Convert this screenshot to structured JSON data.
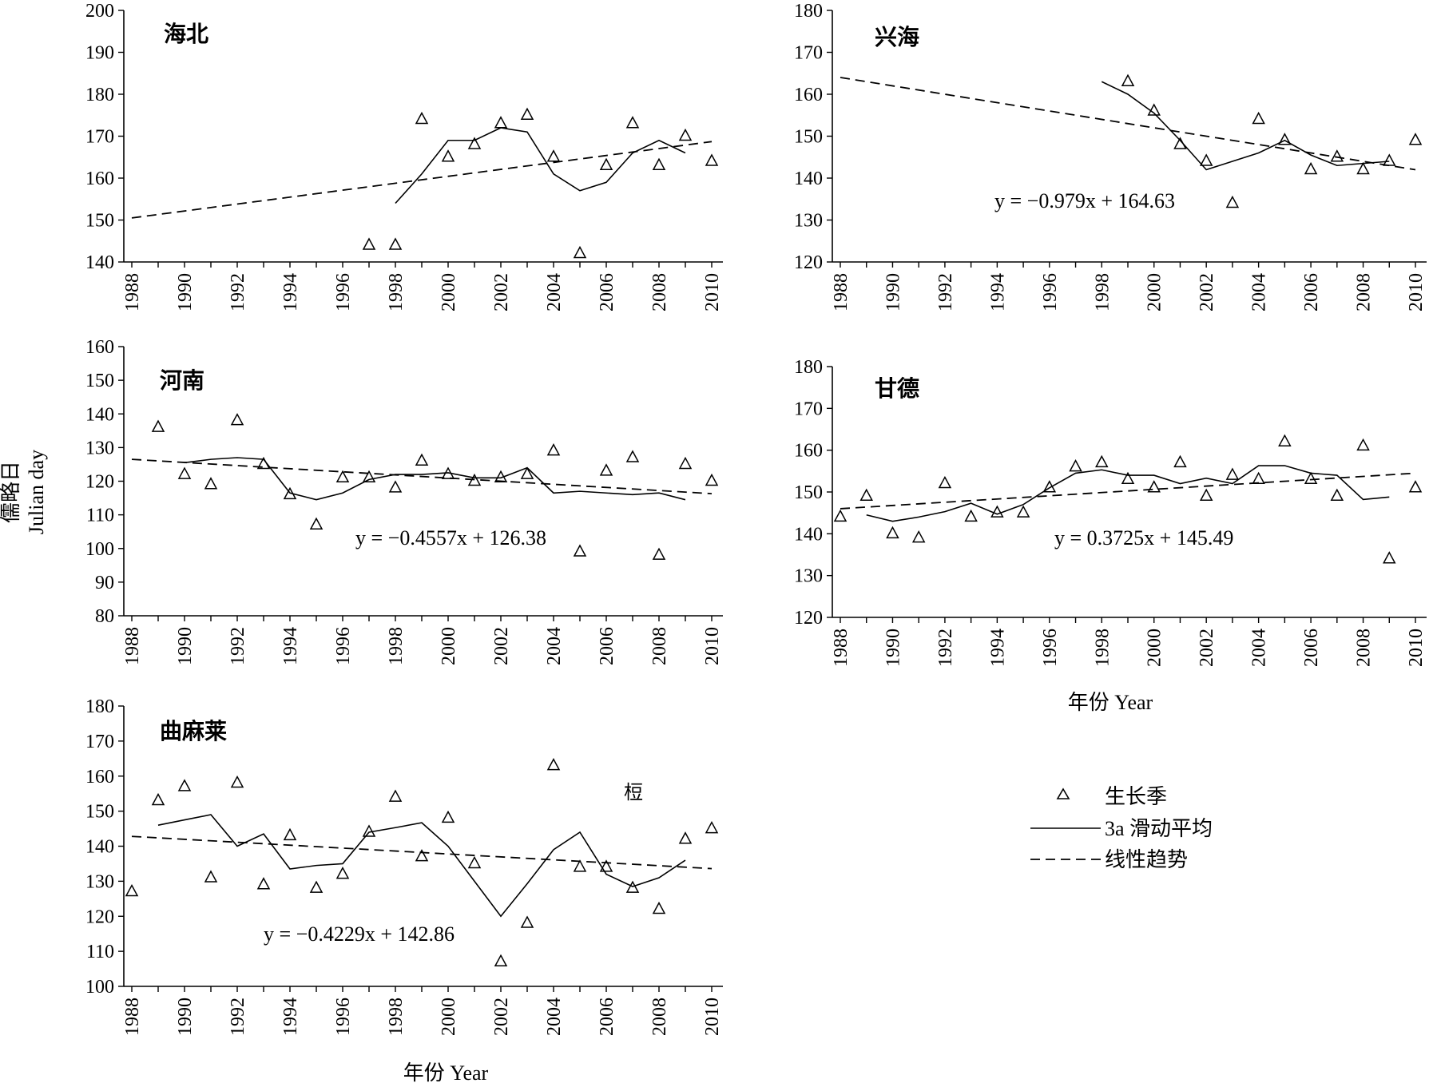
{
  "figure": {
    "ylabel_cn": "儒略日",
    "ylabel_en": "Julian day",
    "xlabel_right": "年份 Year",
    "xlabel_bottom": "年份 Year",
    "stray_mark": "梪"
  },
  "legend": {
    "entries": [
      {
        "label": "生长季",
        "kind": "triangle"
      },
      {
        "label": "3a 滑动平均",
        "kind": "solid"
      },
      {
        "label": "线性趋势",
        "kind": "dashed"
      }
    ]
  },
  "chart_data": [
    {
      "type": "scatter",
      "title": "海北",
      "equation": "",
      "ylim": [
        140,
        200
      ],
      "yticks": [
        140,
        150,
        160,
        170,
        180,
        190,
        200
      ],
      "xlim": [
        1988,
        2010
      ],
      "xticks": [
        1988,
        1990,
        1992,
        1994,
        1996,
        1998,
        2000,
        2002,
        2004,
        2006,
        2008,
        2010
      ],
      "series": [
        {
          "kind": "triangle",
          "x": [
            1997,
            1998,
            1999,
            2000,
            2001,
            2002,
            2003,
            2004,
            2005,
            2006,
            2007,
            2008,
            2009,
            2010
          ],
          "values": [
            144,
            144,
            174,
            165,
            168,
            173,
            175,
            165,
            142,
            163,
            173,
            163,
            170,
            164
          ]
        },
        {
          "kind": "solid",
          "x": [
            1998,
            1999,
            2000,
            2001,
            2002,
            2003,
            2004,
            2005,
            2006,
            2007,
            2008,
            2009
          ],
          "values": [
            154,
            161,
            169,
            169,
            172,
            171,
            161,
            157,
            159,
            166,
            169,
            166
          ]
        },
        {
          "kind": "dashed",
          "x": [
            1988,
            2010
          ],
          "values": [
            150.5,
            168.7
          ]
        }
      ]
    },
    {
      "type": "scatter",
      "title": "兴海",
      "equation": "y = −0.979x + 164.63",
      "ylim": [
        120,
        180
      ],
      "yticks": [
        120,
        130,
        140,
        150,
        160,
        170,
        180
      ],
      "xlim": [
        1988,
        2010
      ],
      "xticks": [
        1988,
        1990,
        1992,
        1994,
        1996,
        1998,
        2000,
        2002,
        2004,
        2006,
        2008,
        2010
      ],
      "series": [
        {
          "kind": "triangle",
          "x": [
            1999,
            2000,
            2001,
            2002,
            2003,
            2004,
            2005,
            2006,
            2007,
            2008,
            2009,
            2010
          ],
          "values": [
            163,
            156,
            148,
            144,
            134,
            154,
            149,
            142,
            145,
            142,
            144,
            149
          ]
        },
        {
          "kind": "solid",
          "x": [
            1998,
            1999,
            2000,
            2001,
            2002,
            2003,
            2004,
            2005,
            2006,
            2007,
            2008,
            2009
          ],
          "values": [
            163,
            160,
            155.5,
            149,
            142,
            144,
            146,
            149,
            145.5,
            143,
            143.5,
            144
          ]
        },
        {
          "kind": "dashed",
          "x": [
            1988,
            2010
          ],
          "values": [
            164,
            142
          ]
        }
      ]
    },
    {
      "type": "scatter",
      "title": "河南",
      "equation": "y = −0.4557x + 126.38",
      "ylim": [
        80,
        160
      ],
      "yticks": [
        80,
        90,
        100,
        110,
        120,
        130,
        140,
        150,
        160
      ],
      "xlim": [
        1988,
        2010
      ],
      "xticks": [
        1988,
        1990,
        1992,
        1994,
        1996,
        1998,
        2000,
        2002,
        2004,
        2006,
        2008,
        2010
      ],
      "series": [
        {
          "kind": "triangle",
          "x": [
            1989,
            1990,
            1991,
            1992,
            1993,
            1994,
            1995,
            1996,
            1997,
            1998,
            1999,
            2000,
            2001,
            2002,
            2003,
            2004,
            2005,
            2006,
            2007,
            2008,
            2009,
            2010
          ],
          "values": [
            136,
            122,
            119,
            138,
            125,
            116,
            107,
            121,
            121,
            118,
            126,
            122,
            120,
            121,
            122,
            129,
            99,
            123,
            127,
            98,
            125,
            120
          ]
        },
        {
          "kind": "solid",
          "x": [
            1990,
            1991,
            1992,
            1993,
            1994,
            1995,
            1996,
            1997,
            1998,
            1999,
            2000,
            2001,
            2002,
            2003,
            2004,
            2005,
            2006,
            2007,
            2008,
            2009
          ],
          "values": [
            125.5,
            126.5,
            127,
            126.5,
            116.5,
            114.5,
            116.5,
            120.5,
            122,
            122,
            122.5,
            121,
            121,
            124,
            116.5,
            117,
            116.5,
            116,
            116.5,
            114.5
          ]
        },
        {
          "kind": "dashed",
          "x": [
            1988,
            2010
          ],
          "values": [
            126.5,
            116.3
          ]
        }
      ]
    },
    {
      "type": "scatter",
      "title": "甘德",
      "equation": "y = 0.3725x + 145.49",
      "ylim": [
        120,
        180
      ],
      "yticks": [
        120,
        130,
        140,
        150,
        160,
        170,
        180
      ],
      "xlim": [
        1988,
        2010
      ],
      "xticks": [
        1988,
        1990,
        1992,
        1994,
        1996,
        1998,
        2000,
        2002,
        2004,
        2006,
        2008,
        2010
      ],
      "series": [
        {
          "kind": "triangle",
          "x": [
            1988,
            1989,
            1990,
            1991,
            1992,
            1993,
            1994,
            1995,
            1996,
            1997,
            1998,
            1999,
            2000,
            2001,
            2002,
            2003,
            2004,
            2005,
            2006,
            2007,
            2008,
            2009,
            2010
          ],
          "values": [
            144,
            149,
            140,
            139,
            152,
            144,
            145,
            145,
            151,
            156,
            157,
            153,
            151,
            157,
            149,
            154,
            153,
            162,
            153,
            149,
            161,
            134,
            151
          ]
        },
        {
          "kind": "solid",
          "x": [
            1989,
            1990,
            1991,
            1992,
            1993,
            1994,
            1995,
            1996,
            1997,
            1998,
            1999,
            2000,
            2001,
            2002,
            2003,
            2004,
            2005,
            2006,
            2007,
            2008,
            2009
          ],
          "values": [
            144.5,
            143,
            144,
            145.3,
            147.3,
            144.7,
            147,
            151,
            154.5,
            155.3,
            154,
            154,
            152,
            153.3,
            152,
            156.3,
            156.3,
            154.5,
            154,
            148.2,
            148.8
          ]
        },
        {
          "kind": "dashed",
          "x": [
            1988,
            2010
          ],
          "values": [
            146,
            154.5
          ]
        }
      ]
    },
    {
      "type": "scatter",
      "title": "曲麻莱",
      "equation": "y = −0.4229x + 142.86",
      "ylim": [
        100,
        180
      ],
      "yticks": [
        100,
        110,
        120,
        130,
        140,
        150,
        160,
        170,
        180
      ],
      "xlim": [
        1988,
        2010
      ],
      "xticks": [
        1988,
        1990,
        1992,
        1994,
        1996,
        1998,
        2000,
        2002,
        2004,
        2006,
        2008,
        2010
      ],
      "series": [
        {
          "kind": "triangle",
          "x": [
            1988,
            1989,
            1990,
            1991,
            1992,
            1993,
            1994,
            1995,
            1996,
            1997,
            1998,
            1999,
            2000,
            2001,
            2002,
            2003,
            2004,
            2005,
            2006,
            2007,
            2008,
            2009,
            2010
          ],
          "values": [
            127,
            153,
            157,
            131,
            158,
            129,
            143,
            128,
            132,
            144,
            154,
            137,
            148,
            135,
            107,
            118,
            163,
            134,
            134,
            128,
            122,
            142,
            145
          ]
        },
        {
          "kind": "solid",
          "x": [
            1989,
            1990,
            1991,
            1992,
            1993,
            1994,
            1995,
            1996,
            1997,
            1998,
            1999,
            2000,
            2001,
            2002,
            2003,
            2004,
            2005,
            2006,
            2007,
            2008,
            2009
          ],
          "values": [
            146,
            147.5,
            149,
            140,
            143.5,
            133.5,
            134.5,
            135,
            144,
            145.3,
            146.7,
            140,
            130,
            120,
            129.3,
            139,
            144,
            132,
            128.5,
            131,
            136
          ]
        },
        {
          "kind": "dashed",
          "x": [
            1988,
            2010
          ],
          "values": [
            142.8,
            133.6
          ]
        }
      ]
    }
  ]
}
